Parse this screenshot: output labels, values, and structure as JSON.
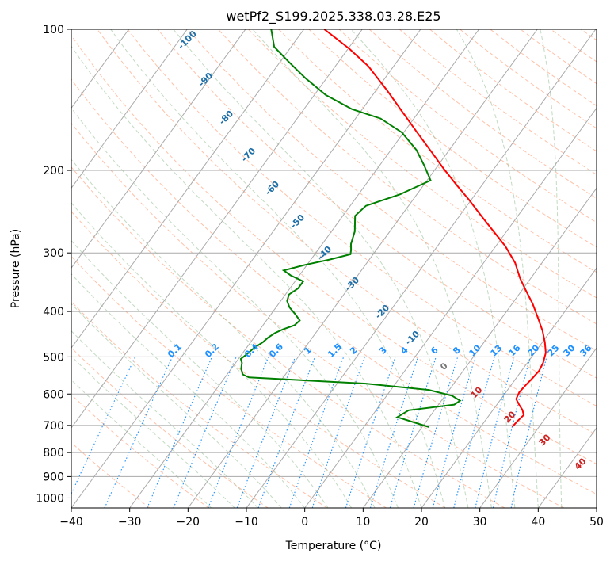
{
  "colors": {
    "temperature": "#ff0000",
    "dewpoint": "#008000",
    "isotherm": "#aaaaaa",
    "isobar": "#aaaaaa",
    "dry_adiabat": "#ffa07a",
    "moist_adiabat": "#8fbc8f",
    "mixing_ratio": "#1e90ff",
    "dry_label": "#1f6fa8",
    "moist_label": "#cc2222",
    "mix_label": "#1e90ff",
    "zero_label": "#777777"
  },
  "chart_data": {
    "type": "line",
    "title": "wetPf2_S199.2025.338.03.28.E25",
    "xlabel": "Temperature (°C)",
    "ylabel": "Pressure (hPa)",
    "xlim": [
      -40,
      50
    ],
    "ylim": [
      1050,
      100
    ],
    "x_ticks": [
      -40,
      -30,
      -20,
      -10,
      0,
      10,
      20,
      30,
      40,
      50
    ],
    "x_tick_labels": [
      "−40",
      "−30",
      "−20",
      "−10",
      "0",
      "10",
      "20",
      "30",
      "40",
      "50"
    ],
    "y_ticks": [
      100,
      200,
      300,
      400,
      500,
      600,
      700,
      800,
      900,
      1000
    ],
    "y_tick_labels": [
      "100",
      "200",
      "300",
      "400",
      "500",
      "600",
      "700",
      "800",
      "900",
      "1000"
    ],
    "series": [
      {
        "name": "temperature",
        "points": [
          [
            25.4,
            705
          ],
          [
            25.6,
            685
          ],
          [
            25.9,
            665
          ],
          [
            25.0,
            648
          ],
          [
            24.0,
            635
          ],
          [
            22.6,
            615
          ],
          [
            22.3,
            595
          ],
          [
            22.5,
            575
          ],
          [
            22.8,
            555
          ],
          [
            23.0,
            535
          ],
          [
            22.7,
            515
          ],
          [
            21.9,
            490
          ],
          [
            20.4,
            465
          ],
          [
            18.6,
            440
          ],
          [
            16.4,
            415
          ],
          [
            13.5,
            385
          ],
          [
            10.6,
            360
          ],
          [
            8.2,
            340
          ],
          [
            5.4,
            315
          ],
          [
            1.6,
            290
          ],
          [
            -2.2,
            270
          ],
          [
            -6.3,
            250
          ],
          [
            -10.4,
            231
          ],
          [
            -14.6,
            214
          ],
          [
            -18.7,
            198
          ],
          [
            -22.7,
            183
          ],
          [
            -27.7,
            166
          ],
          [
            -32.8,
            150
          ],
          [
            -38.1,
            135
          ],
          [
            -44.3,
            120
          ],
          [
            -49.8,
            110
          ],
          [
            -56.5,
            100
          ]
        ]
      },
      {
        "name": "dewpoint",
        "points": [
          [
            11.2,
            706
          ],
          [
            4.5,
            672
          ],
          [
            5.6,
            650
          ],
          [
            12.7,
            632
          ],
          [
            13.2,
            620
          ],
          [
            11.2,
            605
          ],
          [
            6.5,
            588
          ],
          [
            -5.1,
            570
          ],
          [
            -25.9,
            553
          ],
          [
            -27.3,
            545
          ],
          [
            -28.3,
            530
          ],
          [
            -28.9,
            515
          ],
          [
            -29.6,
            505
          ],
          [
            -29.2,
            495
          ],
          [
            -28.9,
            485
          ],
          [
            -28.7,
            478
          ],
          [
            -27.9,
            465
          ],
          [
            -27.6,
            455
          ],
          [
            -27.0,
            445
          ],
          [
            -26.1,
            437
          ],
          [
            -24.6,
            428
          ],
          [
            -24.3,
            418
          ],
          [
            -25.9,
            405
          ],
          [
            -27.7,
            392
          ],
          [
            -28.9,
            380
          ],
          [
            -29.4,
            368
          ],
          [
            -28.6,
            357
          ],
          [
            -28.6,
            345
          ],
          [
            -31.5,
            335
          ],
          [
            -33.3,
            327
          ],
          [
            -30.3,
            318
          ],
          [
            -26.8,
            310
          ],
          [
            -23.9,
            302
          ],
          [
            -24.3,
            296
          ],
          [
            -25.1,
            287
          ],
          [
            -26.0,
            270
          ],
          [
            -27.9,
            250
          ],
          [
            -27.3,
            238
          ],
          [
            -22.9,
            225
          ],
          [
            -19.4,
            210
          ],
          [
            -22.4,
            195
          ],
          [
            -25.6,
            181
          ],
          [
            -30.3,
            166
          ],
          [
            -35.7,
            155
          ],
          [
            -41.8,
            148
          ],
          [
            -48.1,
            138
          ],
          [
            -53.7,
            127
          ],
          [
            -58.7,
            117
          ],
          [
            -62.9,
            109
          ],
          [
            -65.6,
            100
          ]
        ]
      }
    ],
    "dry_adiabat_labels": [
      "-100",
      "-90",
      "-80",
      "-70",
      "-60",
      "-50",
      "-40",
      "-30",
      "-20",
      "-10",
      "0"
    ],
    "moist_adiabat_labels": [
      "10",
      "20",
      "30",
      "40"
    ],
    "mixing_ratio_labels": [
      "0.1",
      "0.2",
      "0.4",
      "0.6",
      "1",
      "1.5",
      "2",
      "3",
      "4",
      "6",
      "8",
      "10",
      "13",
      "16",
      "20",
      "25",
      "30",
      "36"
    ]
  }
}
